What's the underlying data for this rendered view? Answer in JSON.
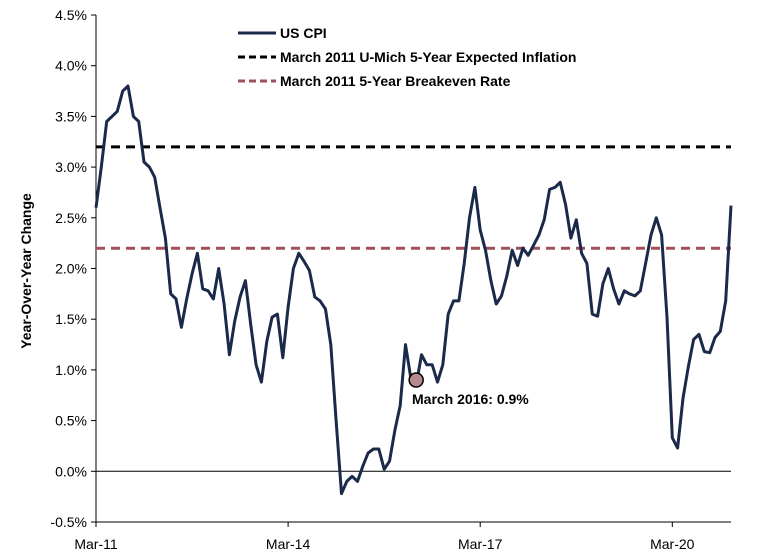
{
  "chart_data": {
    "type": "line",
    "title": "",
    "xlabel": "",
    "ylabel": "Year-Over-Year Change",
    "ylim": [
      -0.5,
      4.5
    ],
    "y_ticks": [
      "-0.5%",
      "0.0%",
      "0.5%",
      "1.0%",
      "1.5%",
      "2.0%",
      "2.5%",
      "3.0%",
      "3.5%",
      "4.0%",
      "4.5%"
    ],
    "x_ticks": [
      "Mar-11",
      "Mar-14",
      "Mar-17",
      "Mar-20"
    ],
    "grid": false,
    "legend_position": "top",
    "series": [
      {
        "name": "US CPI",
        "color": "#1b2a4a",
        "start": "Mar-11",
        "frequency": "monthly",
        "values": [
          2.6,
          3.0,
          3.45,
          3.5,
          3.55,
          3.75,
          3.8,
          3.5,
          3.45,
          3.05,
          3.0,
          2.9,
          2.6,
          2.3,
          1.75,
          1.7,
          1.42,
          1.7,
          1.95,
          2.15,
          1.8,
          1.78,
          1.7,
          2.0,
          1.65,
          1.15,
          1.48,
          1.72,
          1.88,
          1.45,
          1.05,
          0.88,
          1.28,
          1.52,
          1.55,
          1.12,
          1.62,
          2.0,
          2.15,
          2.07,
          1.98,
          1.72,
          1.68,
          1.6,
          1.25,
          0.5,
          -0.22,
          -0.1,
          -0.05,
          -0.1,
          0.05,
          0.18,
          0.22,
          0.22,
          0.02,
          0.1,
          0.4,
          0.65,
          1.25,
          0.92,
          0.85,
          1.15,
          1.05,
          1.05,
          0.88,
          1.05,
          1.55,
          1.68,
          1.68,
          2.05,
          2.5,
          2.8,
          2.38,
          2.18,
          1.88,
          1.65,
          1.73,
          1.93,
          2.18,
          2.03,
          2.2,
          2.13,
          2.23,
          2.33,
          2.48,
          2.78,
          2.8,
          2.85,
          2.63,
          2.3,
          2.48,
          2.15,
          2.05,
          1.55,
          1.53,
          1.85,
          2.0,
          1.8,
          1.65,
          1.78,
          1.75,
          1.73,
          1.78,
          2.05,
          2.33,
          2.5,
          2.33,
          1.52,
          0.33,
          0.23,
          0.72,
          1.03,
          1.3,
          1.35,
          1.18,
          1.17,
          1.32,
          1.38,
          1.68,
          2.62
        ]
      }
    ],
    "reference_lines": [
      {
        "name": "March 2011 U-Mich 5-Year Expected Inflation",
        "value": 3.2,
        "color": "#000000",
        "style": "dashed"
      },
      {
        "name": "March 2011 5-Year Breakeven Rate",
        "value": 2.2,
        "color": "#a0525a",
        "style": "dashed"
      }
    ],
    "annotations": [
      {
        "text": "March 2016: 0.9%",
        "x": "Mar-16",
        "y": 0.9,
        "marker_color": "#b48a8c"
      }
    ]
  }
}
